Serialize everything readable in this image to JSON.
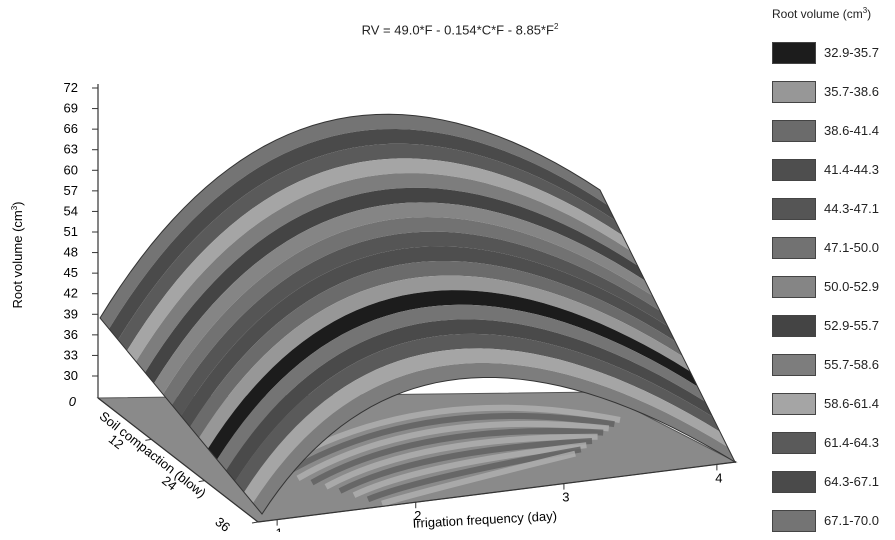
{
  "chart_data": {
    "type": "surface3d",
    "title_main": "RV = 49.0*F - 0.154*C*F - 8.85*F",
    "title_sup": "2",
    "ylabel": "Root volume (cm",
    "ylabel_sup": "3",
    "ylabel_tail": ")",
    "xlabel": "Irrigation frequency (day)",
    "zlabel": "Soil compaction (blow)",
    "y_ticks": [
      "72",
      "69",
      "66",
      "63",
      "60",
      "57",
      "54",
      "51",
      "48",
      "45",
      "42",
      "39",
      "36",
      "33",
      "30"
    ],
    "y_zero": "0",
    "x_ticks": [
      "1",
      "2",
      "3",
      "4"
    ],
    "z_ticks": [
      "12",
      "24",
      "36"
    ],
    "legend": {
      "title": "Root volume (cm",
      "title_sup": "3",
      "placement": "right",
      "items": [
        {
          "label": "32.9-35.7",
          "color": "#1c1c1c"
        },
        {
          "label": "35.7-38.6",
          "color": "#979797"
        },
        {
          "label": "38.6-41.4",
          "color": "#6b6b6b"
        },
        {
          "label": "41.4-44.3",
          "color": "#4e4e4e"
        },
        {
          "label": "44.3-47.1",
          "color": "#555555"
        },
        {
          "label": "47.1-50.0",
          "color": "#727272"
        },
        {
          "label": "50.0-52.9",
          "color": "#858585"
        },
        {
          "label": "52.9-55.7",
          "color": "#444444"
        },
        {
          "label": "55.7-58.6",
          "color": "#7d7d7d"
        },
        {
          "label": "58.6-61.4",
          "color": "#a5a5a5"
        },
        {
          "label": "61.4-64.3",
          "color": "#5a5a5a"
        },
        {
          "label": "64.3-67.1",
          "color": "#4a4a4a"
        },
        {
          "label": "67.1-70.0",
          "color": "#747474"
        }
      ]
    }
  }
}
